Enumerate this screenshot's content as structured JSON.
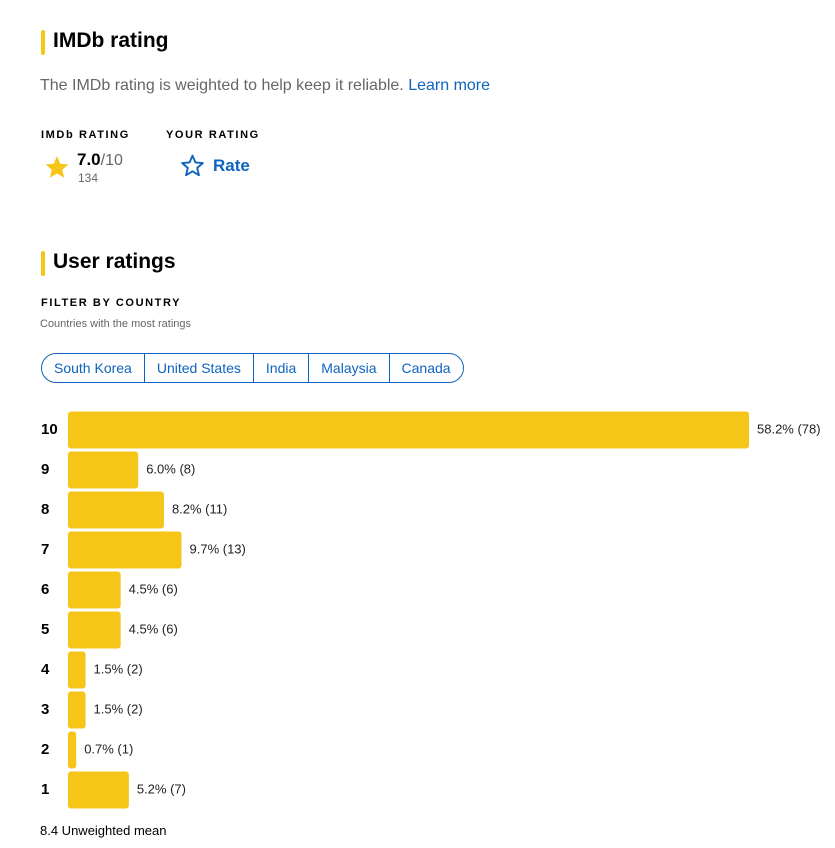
{
  "imdb_rating": {
    "title": "IMDb rating",
    "description": "The IMDb rating is weighted to help keep it reliable.",
    "link": "Learn more",
    "imdb_label": "IMDb RATING",
    "rating": "7.0",
    "rating_max": "/10",
    "vote_count": "134",
    "your_label": "YOUR RATING",
    "rate_button": "Rate"
  },
  "user_ratings": {
    "title": "User ratings",
    "filter_label": "FILTER BY COUNTRY",
    "filter_hint": "Countries with the most ratings",
    "countries": [
      "South Korea",
      "United States",
      "India",
      "Malaysia",
      "Canada"
    ],
    "summary": "8.4 Unweighted mean"
  },
  "chart_data": {
    "type": "bar",
    "orientation": "horizontal",
    "categories": [
      "10",
      "9",
      "8",
      "7",
      "6",
      "5",
      "4",
      "3",
      "2",
      "1"
    ],
    "values": [
      58.2,
      6.0,
      8.2,
      9.7,
      4.5,
      4.5,
      1.5,
      1.5,
      0.7,
      5.2
    ],
    "value_labels": [
      "58.2% (78)",
      "6.0% (8)",
      "8.2% (11)",
      "9.7% (13)",
      "4.5% (6)",
      "4.5% (6)",
      "1.5% (2)",
      "1.5% (2)",
      "0.7% (1)",
      "5.2% (7)"
    ],
    "color": "#f5c518"
  }
}
